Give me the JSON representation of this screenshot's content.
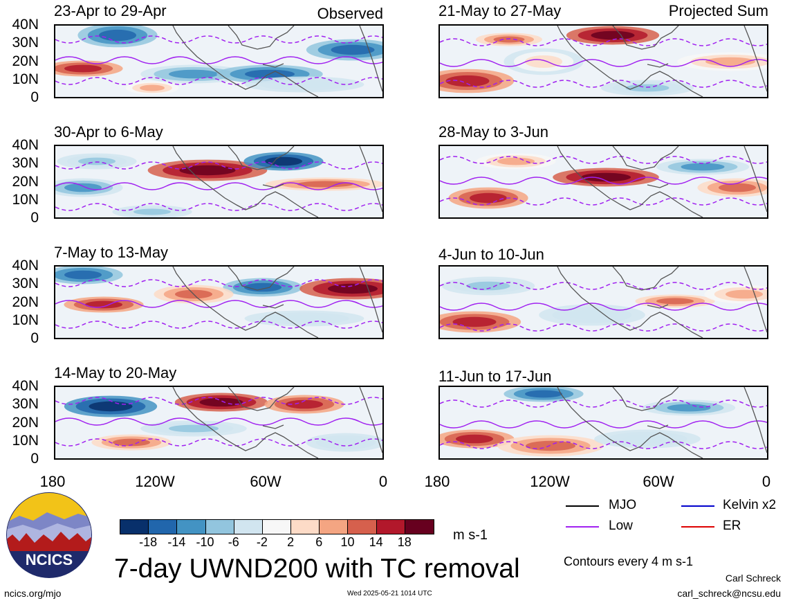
{
  "panels": [
    {
      "title": "23-Apr to 29-Apr",
      "corner": "Observed"
    },
    {
      "title": "21-May to 27-May",
      "corner": "Projected Sum"
    },
    {
      "title": "30-Apr to 6-May",
      "corner": ""
    },
    {
      "title": "28-May to 3-Jun",
      "corner": ""
    },
    {
      "title": "7-May to 13-May",
      "corner": ""
    },
    {
      "title": "4-Jun to 10-Jun",
      "corner": ""
    },
    {
      "title": "14-May to 20-May",
      "corner": ""
    },
    {
      "title": "11-Jun to 17-Jun",
      "corner": ""
    }
  ],
  "lat_labels": [
    "40N",
    "30N",
    "20N",
    "10N",
    "0"
  ],
  "lon_labels_left": [
    "180",
    "120W",
    "60W",
    "0"
  ],
  "lon_labels_right": [
    "180",
    "120W",
    "60W",
    "0"
  ],
  "colorbar": {
    "colors": [
      "#08306b",
      "#2166ac",
      "#4393c3",
      "#92c5de",
      "#d1e5f0",
      "#f7f7f7",
      "#fddbc7",
      "#f4a582",
      "#d6604d",
      "#b2182b",
      "#67001f"
    ],
    "labels": [
      "-18",
      "-14",
      "-10",
      "-6",
      "-2",
      "2",
      "6",
      "10",
      "14",
      "18"
    ],
    "units": "m s-1"
  },
  "legend": {
    "items": [
      {
        "label": "MJO",
        "color": "#000000"
      },
      {
        "label": "Kelvin x2",
        "color": "#0000cc"
      },
      {
        "label": "Low",
        "color": "#a020f0"
      },
      {
        "label": "ER",
        "color": "#dd0000"
      }
    ],
    "contour_note": "Contours every 4 m s-1"
  },
  "main_title": "7-day UWND200 with TC removal",
  "logo_text": "NCICS",
  "footer": {
    "site": "ncics.org/mjo",
    "timestamp": "Wed 2025-05-21 1014 UTC",
    "author": "Carl Schreck",
    "email": "carl_schreck@ncsu.edu"
  }
}
